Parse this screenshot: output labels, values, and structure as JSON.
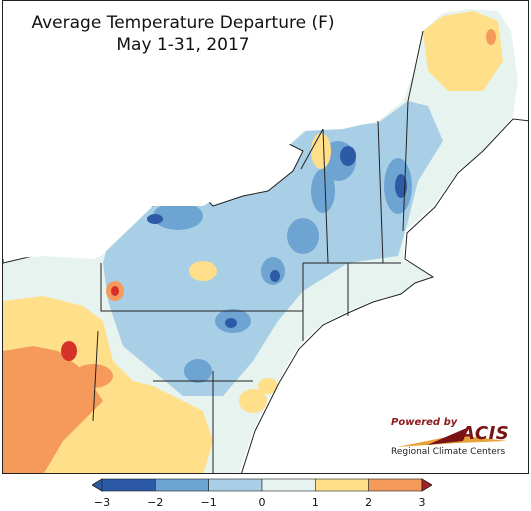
{
  "title": {
    "line1": "Average Temperature Departure (F)",
    "line2": "May 1-31, 2017"
  },
  "logo": {
    "powered_by": "Powered by",
    "acis": "ACIS",
    "org": "Regional Climate Centers"
  },
  "legend": {
    "ticks": [
      "−3",
      "−2",
      "−1",
      "0",
      "1",
      "2",
      "3"
    ],
    "colors": [
      "#2c5aa6",
      "#6ea4d2",
      "#a9cfe6",
      "#e6f3ee",
      "#ffdf8a",
      "#f59a5a",
      "#d7322a"
    ]
  },
  "colors": {
    "water": "#ffffff",
    "background_land": "#e6f3ee",
    "border": "#222222"
  }
}
